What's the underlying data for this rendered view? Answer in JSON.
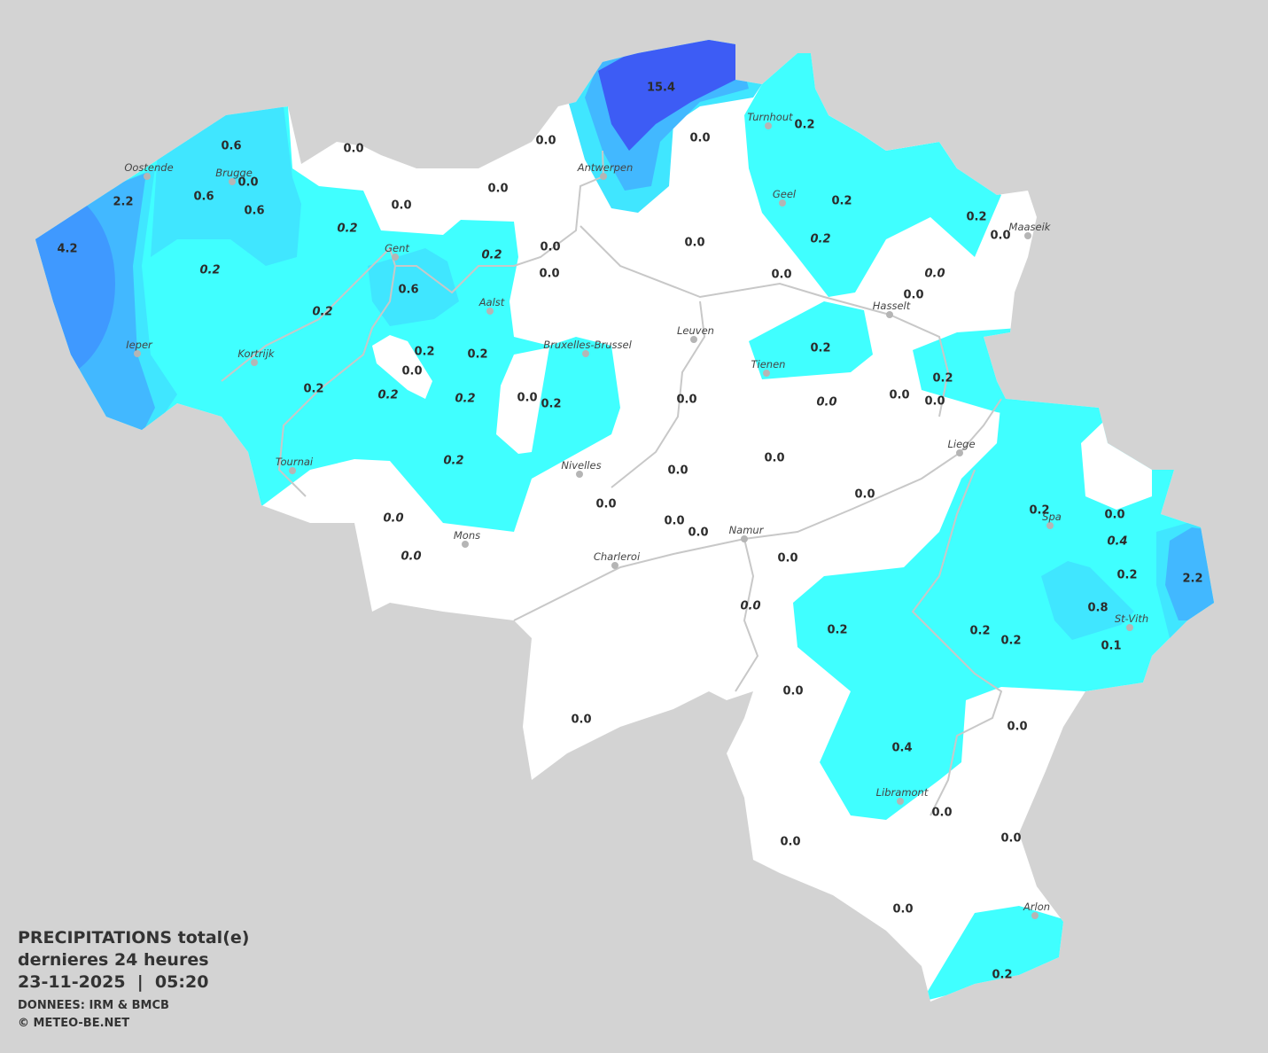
{
  "legend": {
    "title": "PRECIPITATIONS total(e)",
    "period": "dernieres 24 heures",
    "datetime": "23-11-2025  |  05:20",
    "source": "DONNEES: IRM & BMCB",
    "copyright": "© METEO-BE.NET"
  },
  "colors": {
    "background": "#d3d3d3",
    "no_rain": "#ffffff",
    "light": "#40ffff",
    "light_mid": "#40e6ff",
    "mid": "#42b8ff",
    "heavy": "#3f99ff",
    "very_heavy": "#3d5cf5"
  },
  "cities": [
    "Oostende",
    "Brugge",
    "Gent",
    "Antwerpen",
    "Turnhout",
    "Geel",
    "Maaseik",
    "Hasselt",
    "Aalst",
    "Ieper",
    "Kortrijk",
    "Bruxelles-Brussel",
    "Leuven",
    "Tienen",
    "Liege",
    "Tournai",
    "Nivelles",
    "Mons",
    "Charleroi",
    "Namur",
    "Spa",
    "St-Vith",
    "Libramont",
    "Arlon"
  ],
  "values": [
    "0.6",
    "2.2",
    "0.6",
    "0.0",
    "0.6",
    "4.2",
    "0.2",
    "0.0",
    "0.0",
    "0.2",
    "0.0",
    "0.0",
    "15.4",
    "0.0",
    "0.2",
    "0.2",
    "0.2",
    "0.2",
    "0.0",
    "0.0",
    "0.0",
    "0.0",
    "0.0",
    "0.2",
    "0.6",
    "0.2",
    "0.0",
    "0.0",
    "0.2",
    "0.2",
    "0.2",
    "0.2",
    "0.0",
    "0.2",
    "0.2",
    "0.2",
    "0.0",
    "0.2",
    "0.0",
    "0.0",
    "0.0",
    "0.0",
    "0.2",
    "0.0",
    "0.0",
    "0.0",
    "0.0",
    "0.0",
    "0.0",
    "0.0",
    "0.0",
    "0.0",
    "0.0",
    "0.2",
    "0.0",
    "0.4",
    "0.2",
    "2.2",
    "0.8",
    "0.1",
    "0.2",
    "0.2",
    "0.2",
    "0.0",
    "0.0",
    "0.0",
    "0.4",
    "0.0",
    "0.0",
    "0.0",
    "0.0",
    "0.2"
  ]
}
